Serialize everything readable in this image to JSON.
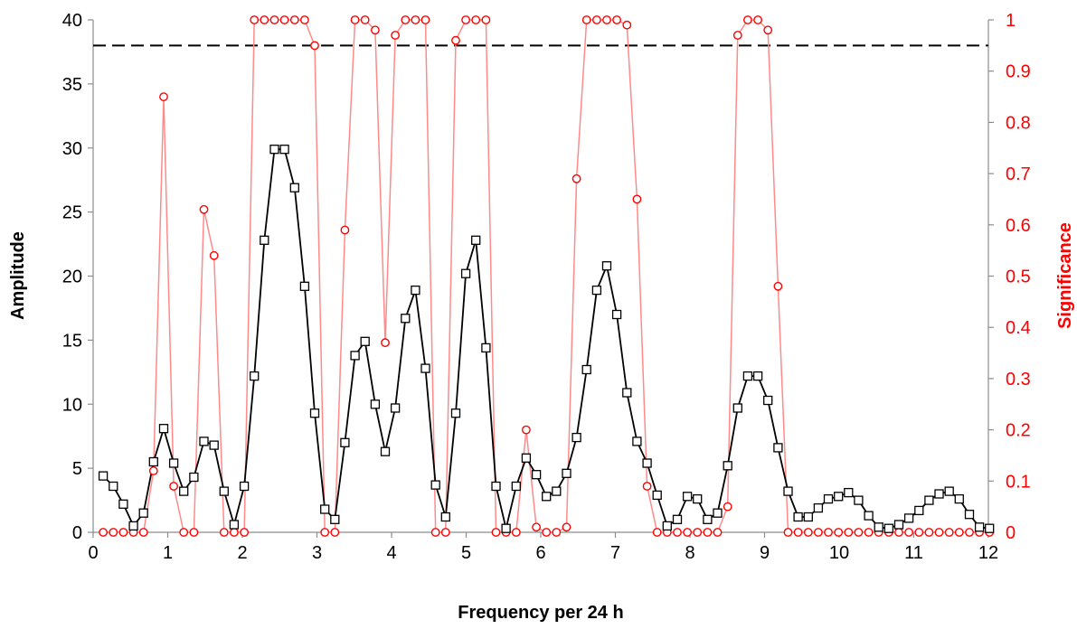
{
  "colors": {
    "amplitude": "#000000",
    "significance_marker": "#ff0000",
    "significance_line": "#ff8a8a",
    "right_axis": "#ff0000",
    "threshold": "#000000"
  },
  "chart_data": {
    "type": "line",
    "xlabel": "Frequency per 24 h",
    "ylabel": "Amplitude",
    "y2label": "Significance",
    "xlim": [
      0,
      12
    ],
    "ylim": [
      0,
      40
    ],
    "y2lim": [
      0,
      1
    ],
    "xticks": [
      "0",
      "1",
      "2",
      "3",
      "4",
      "5",
      "6",
      "7",
      "8",
      "9",
      "10",
      "11",
      "12"
    ],
    "yticks": [
      "0",
      "5",
      "10",
      "15",
      "20",
      "25",
      "30",
      "35",
      "40"
    ],
    "y2ticks": [
      "0",
      "0.1",
      "0.2",
      "0.3",
      "0.4",
      "0.5",
      "0.6",
      "0.7",
      "0.8",
      "0.9",
      "1"
    ],
    "grid": false,
    "legend": "none",
    "threshold": {
      "axis": "right",
      "value": 0.95,
      "style": "dashed"
    },
    "series": [
      {
        "axis": "left",
        "marker": "square",
        "x": [
          0.135,
          0.27,
          0.405,
          0.54,
          0.675,
          0.81,
          0.945,
          1.08,
          1.215,
          1.35,
          1.485,
          1.62,
          1.755,
          1.89,
          2.025,
          2.16,
          2.295,
          2.43,
          2.565,
          2.7,
          2.835,
          2.97,
          3.105,
          3.24,
          3.375,
          3.51,
          3.645,
          3.78,
          3.915,
          4.05,
          4.185,
          4.32,
          4.455,
          4.59,
          4.725,
          4.86,
          4.995,
          5.13,
          5.265,
          5.4,
          5.535,
          5.67,
          5.805,
          5.94,
          6.075,
          6.21,
          6.345,
          6.48,
          6.615,
          6.75,
          6.885,
          7.02,
          7.155,
          7.29,
          7.425,
          7.56,
          7.695,
          7.83,
          7.965,
          8.1,
          8.235,
          8.37,
          8.505,
          8.64,
          8.775,
          8.91,
          9.045,
          9.18,
          9.315,
          9.45,
          9.585,
          9.72,
          9.855,
          9.99,
          10.125,
          10.26,
          10.395,
          10.53,
          10.665,
          10.8,
          10.935,
          11.07,
          11.205,
          11.34,
          11.475,
          11.61,
          11.745,
          11.88,
          12.015
        ],
        "values": [
          4.4,
          3.6,
          2.2,
          0.5,
          1.5,
          5.5,
          8.1,
          5.4,
          3.2,
          4.3,
          7.1,
          6.8,
          3.2,
          0.6,
          3.6,
          12.2,
          22.8,
          29.9,
          29.9,
          26.9,
          19.2,
          9.3,
          1.8,
          1.0,
          7.0,
          13.8,
          14.9,
          10.0,
          6.3,
          9.7,
          16.7,
          18.9,
          12.8,
          3.7,
          1.2,
          9.3,
          20.2,
          22.8,
          14.4,
          3.6,
          0.3,
          3.6,
          5.8,
          4.5,
          2.8,
          3.2,
          4.6,
          7.4,
          12.7,
          18.9,
          20.8,
          17.0,
          10.9,
          7.1,
          5.4,
          2.9,
          0.5,
          1.0,
          2.8,
          2.6,
          1.0,
          1.5,
          5.2,
          9.7,
          12.2,
          12.2,
          10.3,
          6.6,
          3.2,
          1.2,
          1.2,
          1.9,
          2.6,
          2.8,
          3.1,
          2.5,
          1.3,
          0.4,
          0.3,
          0.6,
          1.1,
          1.7,
          2.5,
          3.0,
          3.2,
          2.6,
          1.4,
          0.4,
          0.3
        ]
      },
      {
        "axis": "right",
        "marker": "circle",
        "x": [
          0.135,
          0.27,
          0.405,
          0.54,
          0.675,
          0.81,
          0.945,
          1.08,
          1.215,
          1.35,
          1.485,
          1.62,
          1.755,
          1.89,
          2.025,
          2.16,
          2.295,
          2.43,
          2.565,
          2.7,
          2.835,
          2.97,
          3.105,
          3.24,
          3.375,
          3.51,
          3.645,
          3.78,
          3.915,
          4.05,
          4.185,
          4.32,
          4.455,
          4.59,
          4.725,
          4.86,
          4.995,
          5.13,
          5.265,
          5.4,
          5.535,
          5.67,
          5.805,
          5.94,
          6.075,
          6.21,
          6.345,
          6.48,
          6.615,
          6.75,
          6.885,
          7.02,
          7.155,
          7.29,
          7.425,
          7.56,
          7.695,
          7.83,
          7.965,
          8.1,
          8.235,
          8.37,
          8.505,
          8.64,
          8.775,
          8.91,
          9.045,
          9.18,
          9.315,
          9.45,
          9.585,
          9.72,
          9.855,
          9.99,
          10.125,
          10.26,
          10.395,
          10.53,
          10.665,
          10.8,
          10.935,
          11.07,
          11.205,
          11.34,
          11.475,
          11.61,
          11.745,
          11.88,
          12.015
        ],
        "values": [
          0,
          0,
          0,
          0,
          0,
          0.12,
          0.85,
          0.09,
          0,
          0,
          0.63,
          0.54,
          0,
          0,
          0,
          1.0,
          1.0,
          1.0,
          1.0,
          1.0,
          1.0,
          0.95,
          0,
          0,
          0.59,
          1.0,
          1.0,
          0.98,
          0.37,
          0.97,
          1.0,
          1.0,
          1.0,
          0,
          0,
          0.96,
          1.0,
          1.0,
          1.0,
          0,
          0,
          0,
          0.2,
          0.01,
          0,
          0,
          0.01,
          0.69,
          1.0,
          1.0,
          1.0,
          1.0,
          0.99,
          0.65,
          0.09,
          0,
          0,
          0,
          0,
          0,
          0,
          0,
          0.05,
          0.97,
          1.0,
          1.0,
          0.98,
          0.48,
          0,
          0,
          0,
          0,
          0,
          0,
          0,
          0,
          0,
          0,
          0,
          0,
          0,
          0,
          0,
          0,
          0,
          0,
          0,
          0,
          0
        ]
      }
    ]
  }
}
